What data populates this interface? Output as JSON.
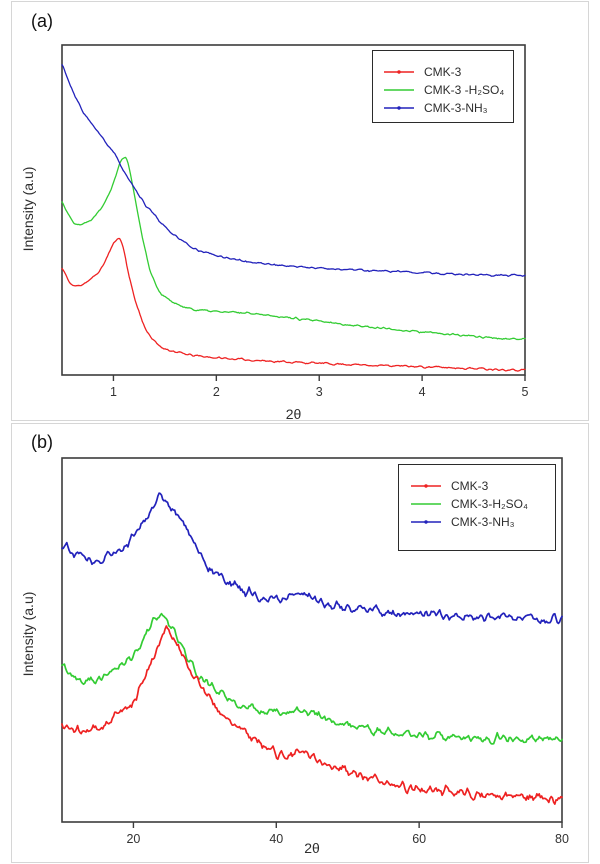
{
  "figure": {
    "background": "#ffffff",
    "text_color": "#2e2e2e",
    "axis_color": "#3c3c3c"
  },
  "chart_data": [
    {
      "panel": "a",
      "panel_label": "(a)",
      "type": "line",
      "title": "",
      "xlabel": "2θ",
      "ylabel": "Intensity (a.u)",
      "xlim": [
        0.5,
        5
      ],
      "xticks": [
        1,
        2,
        3,
        4,
        5
      ],
      "ylim": [
        0,
        100
      ],
      "yticks_shown": false,
      "grid": false,
      "legend_position": "top-right",
      "series": [
        {
          "name": "CMK-3",
          "color": "#ee2222",
          "marker": "line-dot",
          "z": 1,
          "noise": 0.3,
          "seed": 11,
          "points": [
            [
              0.5,
              32.7
            ],
            [
              0.57,
              28
            ],
            [
              0.62,
              26.7
            ],
            [
              0.7,
              27.5
            ],
            [
              0.8,
              29.4
            ],
            [
              0.88,
              32
            ],
            [
              0.95,
              36.5
            ],
            [
              1.01,
              40.5
            ],
            [
              1.05,
              42
            ],
            [
              1.09,
              40
            ],
            [
              1.15,
              30
            ],
            [
              1.21,
              22.7
            ],
            [
              1.3,
              14.5
            ],
            [
              1.38,
              10.8
            ],
            [
              1.45,
              8.5
            ],
            [
              1.6,
              7
            ],
            [
              1.75,
              6
            ],
            [
              2.0,
              5.2
            ],
            [
              2.35,
              4.5
            ],
            [
              2.8,
              3.8
            ],
            [
              3.3,
              3.2
            ],
            [
              3.8,
              2.7
            ],
            [
              4.4,
              2.1
            ],
            [
              5.0,
              1.5
            ]
          ]
        },
        {
          "name": "CMK-3 -H₂SO₄",
          "color": "#33cc33",
          "marker": "line",
          "z": 2,
          "noise": 0.3,
          "seed": 22,
          "points": [
            [
              0.5,
              53
            ],
            [
              0.56,
              48.5
            ],
            [
              0.62,
              46
            ],
            [
              0.7,
              45.5
            ],
            [
              0.8,
              47.5
            ],
            [
              0.9,
              51.5
            ],
            [
              1.0,
              58
            ],
            [
              1.06,
              64.5
            ],
            [
              1.1,
              66.2
            ],
            [
              1.14,
              65.5
            ],
            [
              1.2,
              55
            ],
            [
              1.28,
              42
            ],
            [
              1.35,
              32
            ],
            [
              1.45,
              24.8
            ],
            [
              1.6,
              21.5
            ],
            [
              1.8,
              19.7
            ],
            [
              2.1,
              19
            ],
            [
              2.35,
              18.8
            ],
            [
              2.8,
              17
            ],
            [
              3.2,
              15.5
            ],
            [
              3.6,
              14.2
            ],
            [
              4.0,
              13
            ],
            [
              4.5,
              11.7
            ],
            [
              5.0,
              10.6
            ]
          ]
        },
        {
          "name": "CMK-3-NH₃",
          "color": "#2222bb",
          "marker": "line-dot",
          "z": 3,
          "noise": 0.3,
          "seed": 33,
          "points": [
            [
              0.5,
              94.5
            ],
            [
              0.6,
              86
            ],
            [
              0.7,
              80
            ],
            [
              0.8,
              75.5
            ],
            [
              0.9,
              71.5
            ],
            [
              1.0,
              67.5
            ],
            [
              1.1,
              62
            ],
            [
              1.2,
              56.5
            ],
            [
              1.3,
              52
            ],
            [
              1.45,
              46.5
            ],
            [
              1.6,
              42
            ],
            [
              1.8,
              38
            ],
            [
              2.0,
              36.2
            ],
            [
              2.3,
              34.3
            ],
            [
              2.7,
              33
            ],
            [
              3.0,
              32.4
            ],
            [
              3.5,
              31.6
            ],
            [
              4.0,
              31
            ],
            [
              4.5,
              30.4
            ],
            [
              5.0,
              30
            ]
          ]
        }
      ]
    },
    {
      "panel": "b",
      "panel_label": "(b)",
      "type": "line",
      "title": "",
      "xlabel": "2θ",
      "ylabel": "Intensity (a.u)",
      "xlim": [
        10,
        80
      ],
      "xticks": [
        20,
        40,
        60,
        80
      ],
      "ylim": [
        0,
        100
      ],
      "yticks_shown": false,
      "grid": false,
      "legend_position": "top-right",
      "series": [
        {
          "name": "CMK-3",
          "color": "#ee2222",
          "marker": "line-dot",
          "z": 2,
          "noise": 1.2,
          "seed": 44,
          "points": [
            [
              10,
              26.6
            ],
            [
              11.5,
              25.3
            ],
            [
              13,
              24.7
            ],
            [
              15,
              25.8
            ],
            [
              16.5,
              27.5
            ],
            [
              18,
              29.8
            ],
            [
              20,
              33
            ],
            [
              22,
              41
            ],
            [
              23.5,
              49
            ],
            [
              24.6,
              54
            ],
            [
              25.8,
              49.5
            ],
            [
              27,
              45.9
            ],
            [
              28.5,
              40
            ],
            [
              30.2,
              34.9
            ],
            [
              32,
              30.5
            ],
            [
              34,
              26.6
            ],
            [
              36,
              24
            ],
            [
              38.5,
              21
            ],
            [
              40.5,
              18.5
            ],
            [
              42,
              18
            ],
            [
              43.6,
              19.4
            ],
            [
              45.5,
              17.5
            ],
            [
              48,
              15.2
            ],
            [
              52,
              12.5
            ],
            [
              55.8,
              10.2
            ],
            [
              60,
              9
            ],
            [
              65,
              8
            ],
            [
              70,
              7.2
            ],
            [
              75,
              6.8
            ],
            [
              80,
              6.6
            ]
          ]
        },
        {
          "name": "CMK-3-H₂SO₄",
          "color": "#33cc33",
          "marker": "line",
          "z": 1,
          "noise": 1.1,
          "seed": 55,
          "points": [
            [
              10,
              43
            ],
            [
              11.5,
              40.5
            ],
            [
              13,
              39
            ],
            [
              15,
              39.5
            ],
            [
              16.5,
              40.4
            ],
            [
              18,
              42.5
            ],
            [
              20,
              46
            ],
            [
              21.5,
              50.5
            ],
            [
              22.8,
              55.5
            ],
            [
              23.5,
              57.4
            ],
            [
              24.5,
              55.5
            ],
            [
              25.5,
              53.3
            ],
            [
              27,
              47
            ],
            [
              29.2,
              40.4
            ],
            [
              31.5,
              36
            ],
            [
              34,
              33
            ],
            [
              36,
              31.3
            ],
            [
              38.2,
              30.2
            ],
            [
              40.5,
              29.8
            ],
            [
              42.2,
              30.8
            ],
            [
              43.3,
              31.6
            ],
            [
              44.8,
              30.3
            ],
            [
              46.5,
              28.5
            ],
            [
              49,
              27
            ],
            [
              52,
              25.8
            ],
            [
              55,
              24.7
            ],
            [
              60,
              24
            ],
            [
              65,
              23.2
            ],
            [
              70,
              23
            ],
            [
              75,
              22.8
            ],
            [
              80,
              22.5
            ]
          ]
        },
        {
          "name": "CMK-3-NH₃",
          "color": "#2222bb",
          "marker": "line-dot",
          "z": 3,
          "noise": 1.2,
          "seed": 66,
          "points": [
            [
              10,
              77
            ],
            [
              11.5,
              74.5
            ],
            [
              13,
              72.5
            ],
            [
              15,
              72
            ],
            [
              16.5,
              72.8
            ],
            [
              18,
              74.5
            ],
            [
              20,
              78
            ],
            [
              21.5,
              83
            ],
            [
              23,
              88.5
            ],
            [
              24,
              89.5
            ],
            [
              25,
              87.5
            ],
            [
              26.7,
              84
            ],
            [
              28.5,
              77
            ],
            [
              30.2,
              70.6
            ],
            [
              32,
              67.5
            ],
            [
              34,
              65
            ],
            [
              36,
              63
            ],
            [
              38.2,
              61.5
            ],
            [
              40.5,
              61
            ],
            [
              42,
              62.3
            ],
            [
              43.3,
              64
            ],
            [
              44.5,
              62.5
            ],
            [
              46,
              60.5
            ],
            [
              49,
              59
            ],
            [
              52,
              58.3
            ],
            [
              56,
              57.7
            ],
            [
              60,
              57.2
            ],
            [
              65,
              56.8
            ],
            [
              70,
              56.4
            ],
            [
              75,
              56.2
            ],
            [
              80,
              56
            ]
          ]
        }
      ]
    }
  ]
}
